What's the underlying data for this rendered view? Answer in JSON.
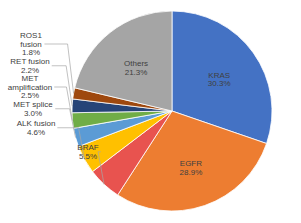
{
  "chart_data": {
    "type": "pie",
    "categories": [
      "KRAS",
      "EGFR",
      "BRAF",
      "ALK fusion",
      "MET splice",
      "MET amplification",
      "RET fusion",
      "ROS1 fusion",
      "Others"
    ],
    "values": [
      30.3,
      28.9,
      5.5,
      4.6,
      3.0,
      2.5,
      2.2,
      1.8,
      21.3
    ],
    "value_labels": [
      "30.3%",
      "28.9%",
      "5.5%",
      "4.6%",
      "3.0%",
      "2.5%",
      "2.2%",
      "1.8%",
      "21.3%"
    ],
    "colors": [
      "#4472c4",
      "#ed7d31",
      "#e8534f",
      "#ffc000",
      "#5b9bd5",
      "#70ad47",
      "#264478",
      "#9e480e",
      "#a5a5a5"
    ],
    "data_labels": true
  }
}
